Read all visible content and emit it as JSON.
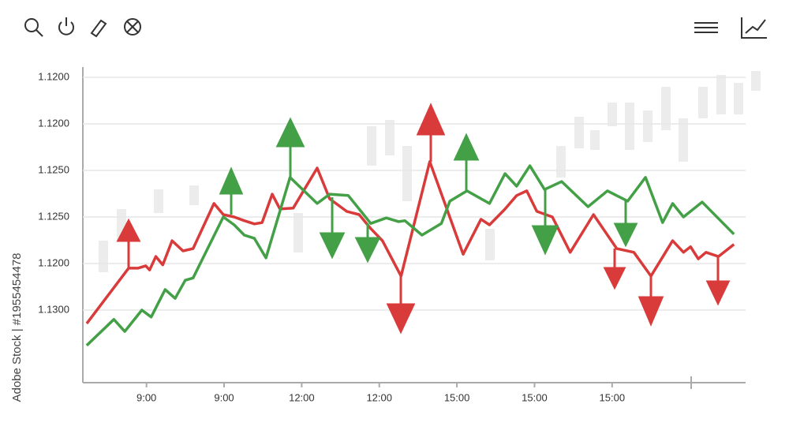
{
  "chart_data": {
    "type": "line",
    "watermark": "Adobe Stock | #1955454478",
    "xlim": [
      -0.82,
      7.72
    ],
    "xticks": [
      {
        "value": 0,
        "label": "9:00"
      },
      {
        "value": 1,
        "label": "9:00"
      },
      {
        "value": 2,
        "label": "12:00"
      },
      {
        "value": 3,
        "label": "12:00"
      },
      {
        "value": 4,
        "label": "15:00"
      },
      {
        "value": 5,
        "label": "15:00"
      },
      {
        "value": 6,
        "label": "15:00"
      }
    ],
    "ylim": [
      -0.56,
      6.22
    ],
    "yticks": [
      {
        "value": 6,
        "label": "1.1200"
      },
      {
        "value": 5,
        "label": "1.1200"
      },
      {
        "value": 4,
        "label": "1.1250"
      },
      {
        "value": 3,
        "label": "1.1250"
      },
      {
        "value": 2,
        "label": "1.1200"
      },
      {
        "value": 1,
        "label": "1.1300"
      }
    ],
    "grid": true,
    "series": [
      {
        "color": "#d93a3a",
        "x": [
          -0.77,
          -0.23,
          -0.11,
          -0.01,
          0.04,
          0.12,
          0.21,
          0.33,
          0.47,
          0.6,
          0.87,
          0.99,
          1.13,
          1.26,
          1.39,
          1.49,
          1.62,
          1.72,
          1.89,
          2.2,
          2.36,
          2.58,
          2.74,
          2.89,
          3.04,
          3.28,
          3.65,
          4.08,
          4.31,
          4.42,
          4.62,
          4.77,
          4.9,
          5.03,
          5.23,
          5.46,
          5.76,
          6.06,
          6.28,
          6.5,
          6.78,
          6.92,
          7.01,
          7.11,
          7.21,
          7.37,
          7.57
        ],
        "values": [
          0.71,
          1.9,
          1.9,
          1.95,
          1.86,
          2.15,
          1.97,
          2.49,
          2.27,
          2.32,
          3.29,
          3.05,
          3.0,
          2.92,
          2.85,
          2.88,
          3.49,
          3.17,
          3.19,
          4.05,
          3.39,
          3.12,
          3.05,
          2.75,
          2.49,
          1.73,
          4.19,
          2.2,
          2.95,
          2.83,
          3.17,
          3.46,
          3.56,
          3.12,
          3.0,
          2.24,
          3.05,
          2.32,
          2.24,
          1.73,
          2.49,
          2.24,
          2.36,
          2.1,
          2.24,
          2.15,
          2.41
        ]
      },
      {
        "color": "#43a047",
        "x": [
          -0.77,
          -0.42,
          -0.28,
          -0.06,
          0.06,
          0.24,
          0.37,
          0.5,
          0.6,
          0.99,
          1.13,
          1.26,
          1.39,
          1.54,
          1.85,
          2.2,
          2.36,
          2.6,
          2.89,
          3.09,
          3.25,
          3.33,
          3.55,
          3.8,
          3.91,
          4.13,
          4.42,
          4.62,
          4.77,
          4.94,
          5.13,
          5.35,
          5.69,
          5.94,
          6.2,
          6.43,
          6.65,
          6.78,
          6.92,
          7.16,
          7.57
        ],
        "values": [
          0.24,
          0.8,
          0.54,
          1.0,
          0.85,
          1.44,
          1.25,
          1.64,
          1.69,
          3.0,
          2.83,
          2.61,
          2.54,
          2.12,
          3.85,
          3.29,
          3.49,
          3.46,
          2.86,
          2.98,
          2.9,
          2.92,
          2.61,
          2.86,
          3.34,
          3.56,
          3.29,
          3.93,
          3.66,
          4.1,
          3.59,
          3.76,
          3.22,
          3.56,
          3.34,
          3.85,
          2.88,
          3.29,
          3.0,
          3.32,
          2.63
        ]
      }
    ]
  }
}
